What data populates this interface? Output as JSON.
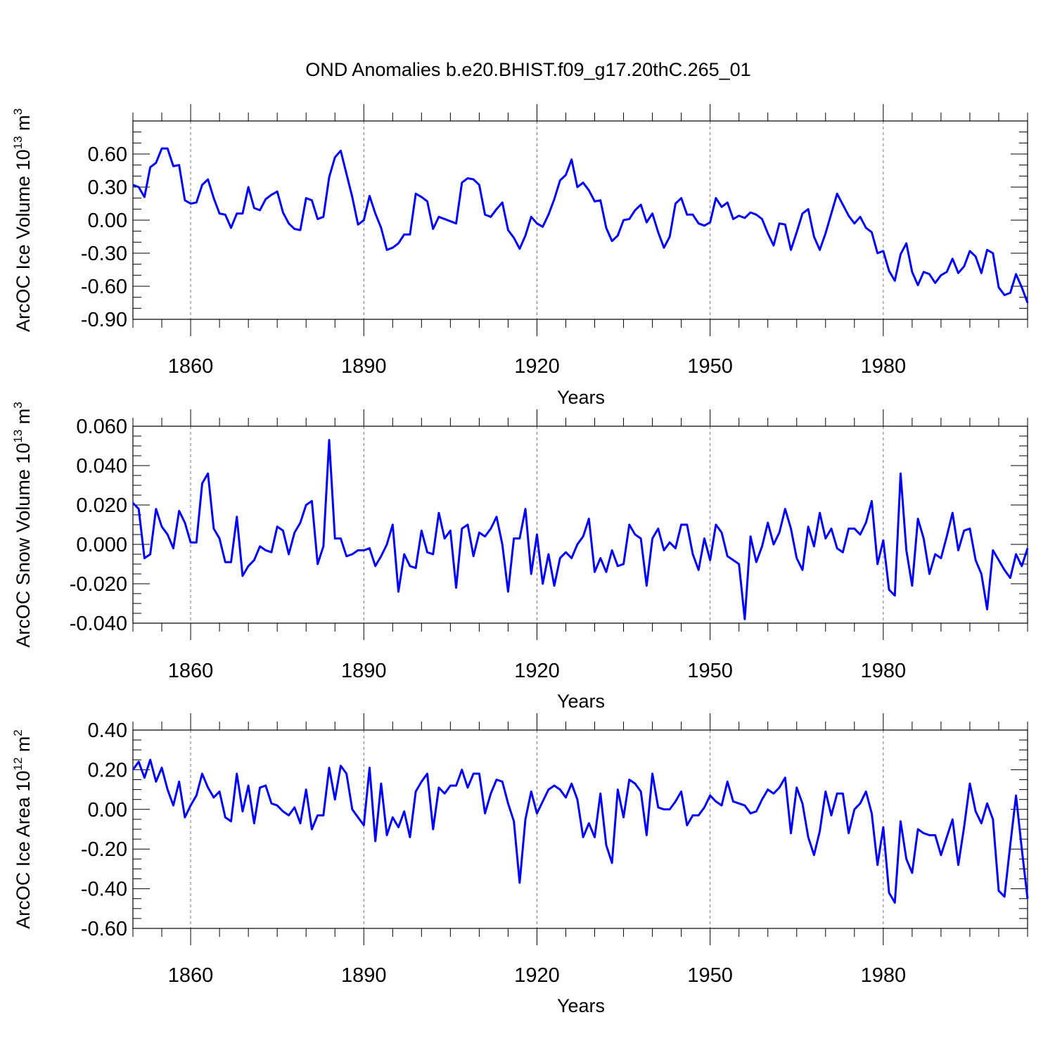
{
  "title": "OND Anomalies b.e20.BHIST.f09_g17.20thC.265_01",
  "line_color": "#0000ff",
  "chart_data": [
    {
      "type": "line",
      "ylabel": "ArcOC Ice Volume 10",
      "ylabel_exp": "13",
      "ylabel_unit": " m",
      "ylabel_unit_exp": "3",
      "xlabel": "Years",
      "xlim": [
        1850,
        2005
      ],
      "ylim": [
        -0.9,
        0.9
      ],
      "yticks": [
        -0.9,
        -0.6,
        -0.3,
        0.0,
        0.3,
        0.6
      ],
      "ytick_labels": [
        "-0.90",
        "-0.60",
        "-0.30",
        "0.00",
        "0.30",
        "0.60"
      ],
      "yminor_step": 0.1,
      "xticks": [
        1860,
        1890,
        1920,
        1950,
        1980
      ],
      "xtick_labels": [
        "1860",
        "1890",
        "1920",
        "1950",
        "1980"
      ],
      "x_start": 1850,
      "values": [
        0.32,
        0.3,
        0.21,
        0.48,
        0.52,
        0.65,
        0.65,
        0.49,
        0.5,
        0.18,
        0.15,
        0.16,
        0.32,
        0.37,
        0.2,
        0.06,
        0.05,
        -0.07,
        0.06,
        0.06,
        0.3,
        0.11,
        0.09,
        0.19,
        0.23,
        0.26,
        0.07,
        -0.03,
        -0.08,
        -0.09,
        0.2,
        0.18,
        0.01,
        0.03,
        0.39,
        0.57,
        0.63,
        0.42,
        0.21,
        -0.04,
        0.0,
        0.22,
        0.06,
        -0.07,
        -0.27,
        -0.25,
        -0.21,
        -0.13,
        -0.13,
        0.24,
        0.21,
        0.17,
        -0.08,
        0.03,
        0.01,
        -0.01,
        -0.03,
        0.34,
        0.38,
        0.37,
        0.32,
        0.05,
        0.03,
        0.1,
        0.16,
        -0.09,
        -0.16,
        -0.26,
        -0.14,
        0.03,
        -0.03,
        -0.06,
        0.05,
        0.19,
        0.36,
        0.41,
        0.55,
        0.3,
        0.34,
        0.27,
        0.17,
        0.18,
        -0.07,
        -0.19,
        -0.14,
        0.0,
        0.01,
        0.09,
        0.14,
        -0.02,
        0.06,
        -0.11,
        -0.25,
        -0.15,
        0.15,
        0.2,
        0.05,
        0.05,
        -0.03,
        -0.05,
        -0.02,
        0.2,
        0.12,
        0.16,
        0.01,
        0.04,
        0.02,
        0.07,
        0.05,
        0.01,
        -0.12,
        -0.23,
        -0.03,
        -0.04,
        -0.27,
        -0.11,
        0.06,
        0.1,
        -0.15,
        -0.27,
        -0.12,
        0.06,
        0.24,
        0.14,
        0.04,
        -0.03,
        0.03,
        -0.07,
        -0.11,
        -0.3,
        -0.28,
        -0.46,
        -0.55,
        -0.31,
        -0.21,
        -0.47,
        -0.59,
        -0.47,
        -0.49,
        -0.57,
        -0.5,
        -0.47,
        -0.35,
        -0.48,
        -0.42,
        -0.28,
        -0.33,
        -0.48,
        -0.27,
        -0.3,
        -0.61,
        -0.68,
        -0.66,
        -0.49,
        -0.61,
        -0.75
      ]
    },
    {
      "type": "line",
      "ylabel": "ArcOC Snow Volume 10",
      "ylabel_exp": "13",
      "ylabel_unit": " m",
      "ylabel_unit_exp": "3",
      "xlabel": "Years",
      "xlim": [
        1850,
        2005
      ],
      "ylim": [
        -0.04,
        0.06
      ],
      "yticks": [
        -0.04,
        -0.02,
        0.0,
        0.02,
        0.04,
        0.06
      ],
      "ytick_labels": [
        "-0.040",
        "-0.020",
        "0.000",
        "0.020",
        "0.040",
        "0.060"
      ],
      "yminor_step": 0.005,
      "xticks": [
        1860,
        1890,
        1920,
        1950,
        1980
      ],
      "xtick_labels": [
        "1860",
        "1890",
        "1920",
        "1950",
        "1980"
      ],
      "x_start": 1850,
      "values": [
        0.021,
        0.018,
        -0.007,
        -0.005,
        0.018,
        0.009,
        0.005,
        -0.002,
        0.017,
        0.011,
        0.001,
        0.001,
        0.031,
        0.036,
        0.008,
        0.003,
        -0.009,
        -0.009,
        0.014,
        -0.016,
        -0.011,
        -0.008,
        -0.001,
        -0.003,
        -0.004,
        0.009,
        0.007,
        -0.005,
        0.006,
        0.011,
        0.02,
        0.022,
        -0.01,
        -0.001,
        0.053,
        0.003,
        0.003,
        -0.006,
        -0.005,
        -0.003,
        -0.003,
        -0.002,
        -0.011,
        -0.006,
        0.0,
        0.01,
        -0.024,
        -0.005,
        -0.011,
        -0.012,
        0.007,
        -0.004,
        -0.005,
        0.016,
        0.003,
        0.007,
        -0.022,
        0.008,
        0.01,
        -0.006,
        0.006,
        0.004,
        0.008,
        0.014,
        0.0,
        -0.024,
        0.003,
        0.003,
        0.018,
        -0.015,
        0.005,
        -0.02,
        -0.005,
        -0.021,
        -0.007,
        -0.004,
        -0.007,
        0.0,
        0.004,
        0.013,
        -0.014,
        -0.007,
        -0.014,
        -0.003,
        -0.011,
        -0.01,
        0.01,
        0.005,
        0.003,
        -0.021,
        0.003,
        0.008,
        -0.003,
        0.001,
        -0.002,
        0.01,
        0.01,
        -0.005,
        -0.013,
        0.003,
        -0.008,
        0.01,
        0.006,
        -0.006,
        -0.008,
        -0.01,
        -0.038,
        0.004,
        -0.009,
        -0.001,
        0.011,
        0.0,
        0.006,
        0.018,
        0.008,
        -0.007,
        -0.013,
        0.009,
        -0.001,
        0.016,
        0.003,
        0.008,
        -0.002,
        -0.004,
        0.008,
        0.008,
        0.005,
        0.011,
        0.022,
        -0.01,
        0.002,
        -0.023,
        -0.026,
        0.036,
        -0.003,
        -0.021,
        0.013,
        0.003,
        -0.015,
        -0.005,
        -0.007,
        0.004,
        0.016,
        -0.003,
        0.007,
        0.008,
        -0.008,
        -0.015,
        -0.033,
        -0.003,
        -0.008,
        -0.013,
        -0.017,
        -0.005,
        -0.011,
        -0.002
      ]
    },
    {
      "type": "line",
      "ylabel": "ArcOC Ice Area 10",
      "ylabel_exp": "12",
      "ylabel_unit": " m",
      "ylabel_unit_exp": "2",
      "xlabel": "Years",
      "xlim": [
        1850,
        2005
      ],
      "ylim": [
        -0.6,
        0.4
      ],
      "yticks": [
        -0.6,
        -0.4,
        -0.2,
        0.0,
        0.2,
        0.4
      ],
      "ytick_labels": [
        "-0.60",
        "-0.40",
        "-0.20",
        "0.00",
        "0.20",
        "0.40"
      ],
      "yminor_step": 0.05,
      "xticks": [
        1860,
        1890,
        1920,
        1950,
        1980
      ],
      "xtick_labels": [
        "1860",
        "1890",
        "1920",
        "1950",
        "1980"
      ],
      "x_start": 1850,
      "values": [
        0.2,
        0.24,
        0.16,
        0.25,
        0.14,
        0.21,
        0.1,
        0.02,
        0.14,
        -0.04,
        0.02,
        0.07,
        0.18,
        0.11,
        0.06,
        0.09,
        -0.04,
        -0.06,
        0.18,
        -0.01,
        0.12,
        -0.07,
        0.11,
        0.12,
        0.03,
        0.02,
        -0.01,
        -0.03,
        0.01,
        -0.07,
        0.1,
        -0.1,
        -0.03,
        -0.03,
        0.21,
        0.05,
        0.22,
        0.18,
        0.0,
        -0.04,
        -0.08,
        0.21,
        -0.16,
        0.13,
        -0.13,
        -0.04,
        -0.09,
        -0.01,
        -0.14,
        0.09,
        0.14,
        0.18,
        -0.1,
        0.11,
        0.08,
        0.12,
        0.12,
        0.2,
        0.11,
        0.18,
        0.18,
        -0.02,
        0.08,
        0.15,
        0.14,
        0.03,
        -0.06,
        -0.37,
        -0.05,
        0.09,
        -0.02,
        0.04,
        0.1,
        0.12,
        0.1,
        0.06,
        0.13,
        0.05,
        -0.14,
        -0.07,
        -0.14,
        0.08,
        -0.18,
        -0.27,
        0.1,
        -0.04,
        0.15,
        0.13,
        0.09,
        -0.13,
        0.18,
        0.01,
        0.0,
        0.0,
        0.04,
        0.09,
        -0.08,
        -0.03,
        -0.03,
        0.01,
        0.07,
        0.04,
        0.02,
        0.14,
        0.04,
        0.03,
        0.02,
        -0.02,
        -0.01,
        0.05,
        0.1,
        0.08,
        0.11,
        0.16,
        -0.12,
        0.11,
        0.03,
        -0.14,
        -0.23,
        -0.11,
        0.09,
        -0.03,
        0.08,
        0.08,
        -0.12,
        0.0,
        0.03,
        0.09,
        -0.02,
        -0.28,
        -0.09,
        -0.42,
        -0.47,
        -0.06,
        -0.25,
        -0.32,
        -0.1,
        -0.12,
        -0.13,
        -0.13,
        -0.23,
        -0.14,
        -0.05,
        -0.28,
        -0.09,
        0.13,
        -0.01,
        -0.07,
        0.03,
        -0.05,
        -0.41,
        -0.44,
        -0.18,
        0.07,
        -0.2,
        -0.45
      ]
    }
  ]
}
